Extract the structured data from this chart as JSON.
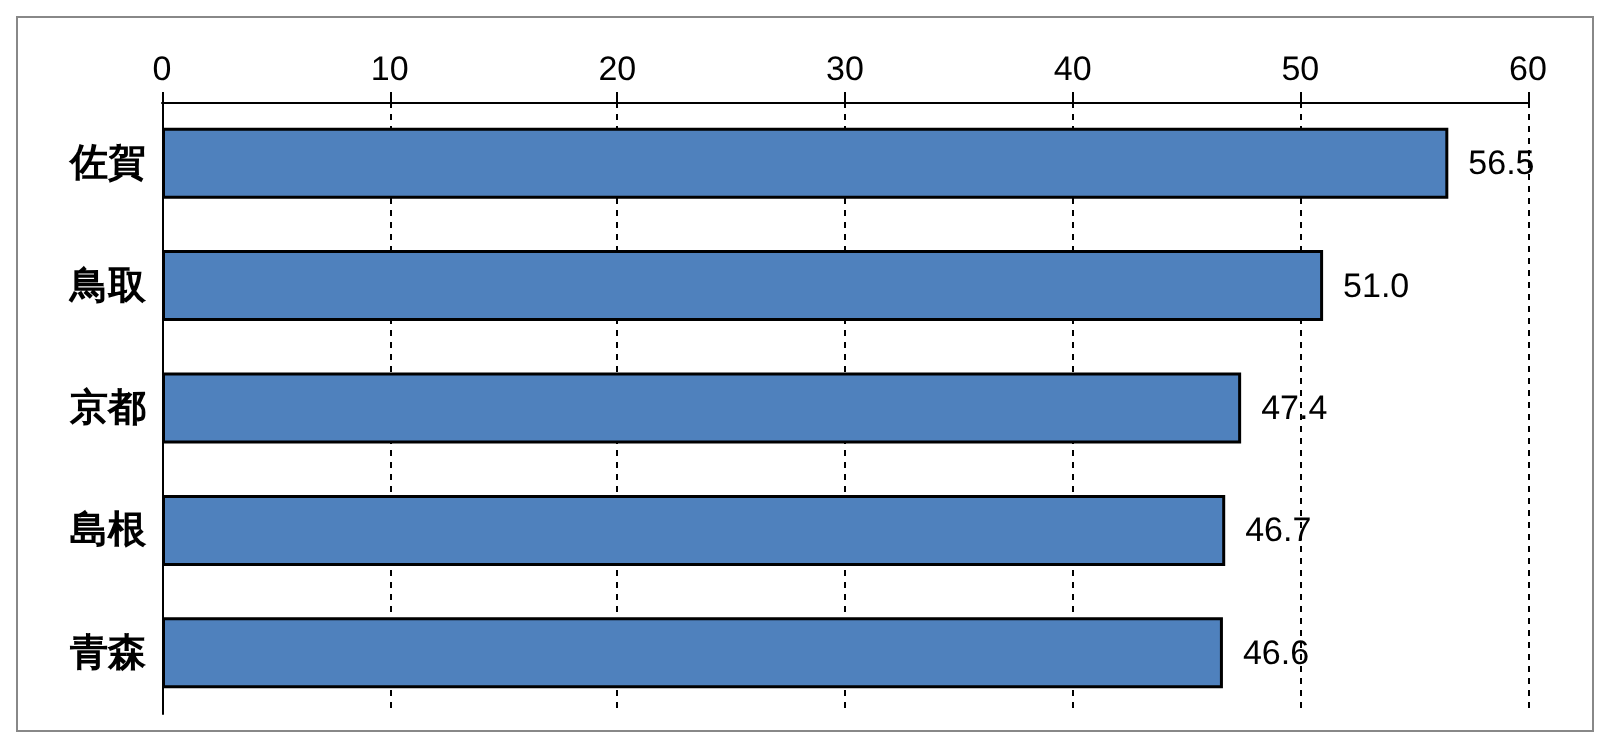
{
  "chart_data": {
    "type": "bar",
    "orientation": "horizontal",
    "categories": [
      "佐賀",
      "鳥取",
      "京都",
      "島根",
      "青森"
    ],
    "values": [
      56.5,
      51.0,
      47.4,
      46.7,
      46.6
    ],
    "color": "#4f81bd",
    "value_labels": [
      "56.5",
      "51.0",
      "47.4",
      "46.7",
      "46.6"
    ],
    "xlim": [
      0,
      60
    ],
    "xticks": [
      0,
      10,
      20,
      30,
      40,
      50,
      60
    ],
    "grid": "x"
  }
}
